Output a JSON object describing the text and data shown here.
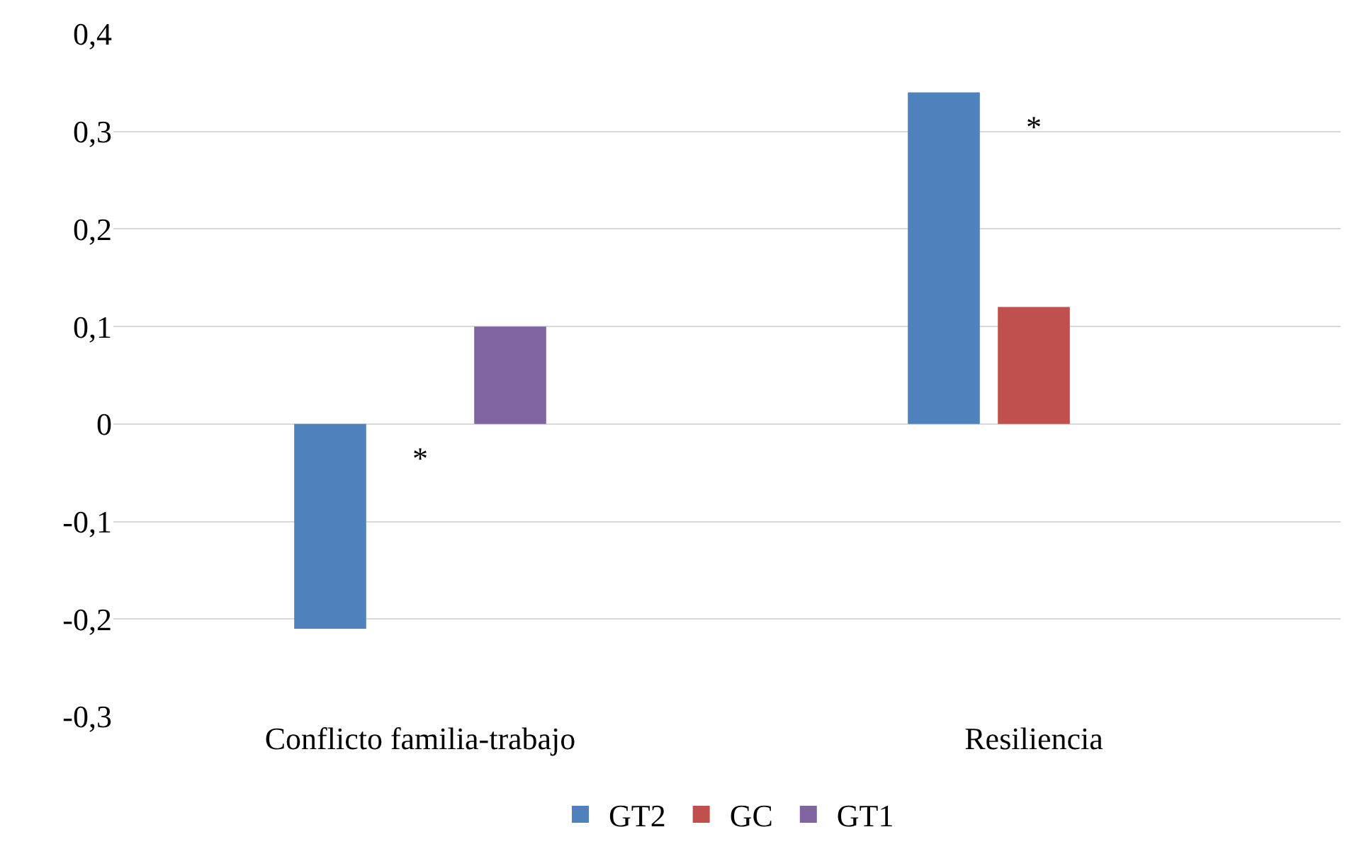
{
  "chart_data": {
    "type": "bar",
    "categories": [
      "Conflicto familia-trabajo",
      "Resiliencia"
    ],
    "series": [
      {
        "name": "GT2",
        "color": "#4f81bd",
        "values": [
          -0.21,
          0.34
        ]
      },
      {
        "name": "GC",
        "color": "#c0504d",
        "values": [
          null,
          0.12
        ]
      },
      {
        "name": "GT1",
        "color": "#8064a2",
        "values": [
          0.1,
          null
        ]
      }
    ],
    "ylim": [
      -0.3,
      0.4
    ],
    "yticks": [
      {
        "value": -0.3,
        "label": "-0,3"
      },
      {
        "value": -0.2,
        "label": "-0,2"
      },
      {
        "value": -0.1,
        "label": "-0,1"
      },
      {
        "value": 0,
        "label": "0"
      },
      {
        "value": 0.1,
        "label": "0,1"
      },
      {
        "value": 0.2,
        "label": "0,2"
      },
      {
        "value": 0.3,
        "label": "0,3"
      },
      {
        "value": 0.4,
        "label": "0,4"
      }
    ],
    "grid": "y",
    "legend": "bottom",
    "annotations": [
      "*",
      "*"
    ]
  }
}
